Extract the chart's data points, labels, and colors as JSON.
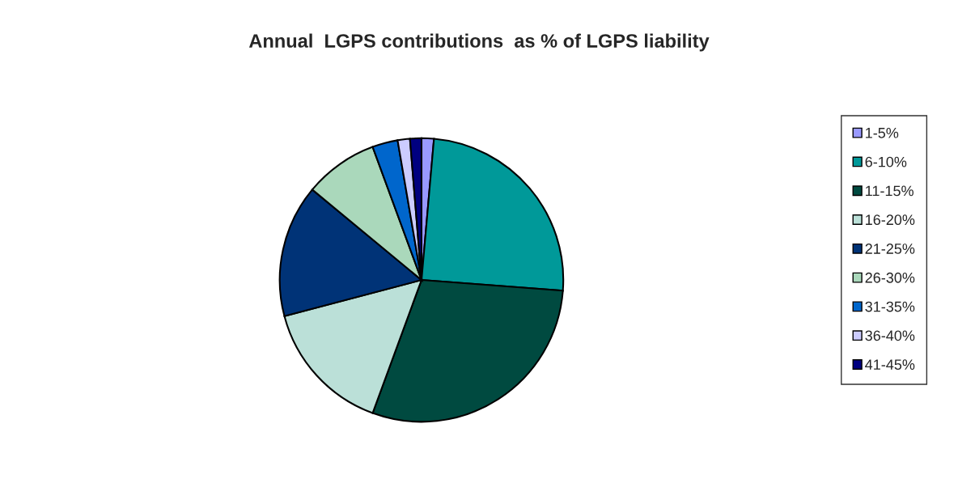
{
  "chart_data": {
    "type": "pie",
    "title": "Annual  LGPS contributions  as % of LGPS liability",
    "categories": [
      "1-5%",
      "6-10%",
      "11-15%",
      "16-20%",
      "21-25%",
      "26-30%",
      "31-35%",
      "36-40%",
      "41-45%"
    ],
    "values": [
      1.4,
      24.8,
      29.4,
      15.3,
      15.1,
      8.4,
      2.9,
      1.4,
      1.3
    ],
    "colors": [
      "#9999ff",
      "#009999",
      "#004a40",
      "#bbe0d8",
      "#003377",
      "#aad8bb",
      "#0066cc",
      "#ccccff",
      "#000080"
    ],
    "legend": "right"
  }
}
